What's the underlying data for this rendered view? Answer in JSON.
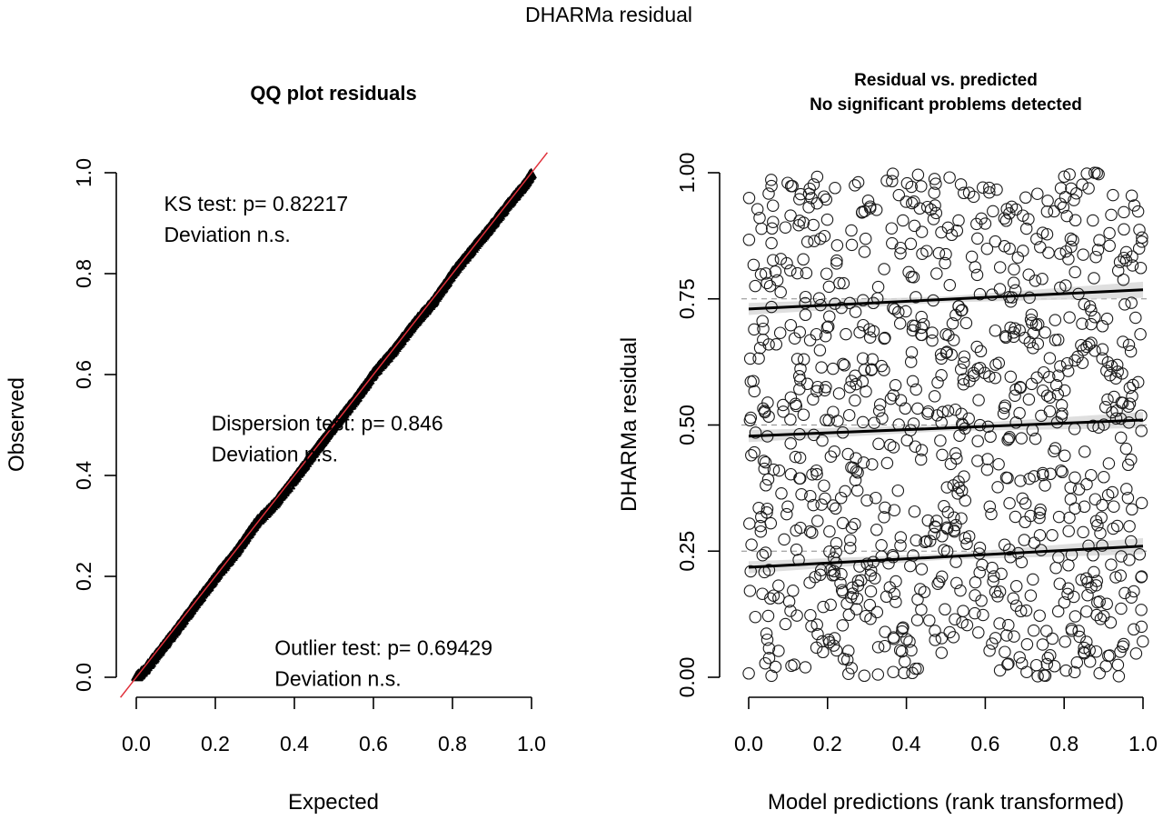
{
  "figure": {
    "title": "DHARMa residual"
  },
  "chart_data": [
    {
      "type": "scatter",
      "panel": "left",
      "title": "QQ plot residuals",
      "xlabel": "Expected",
      "ylabel": "Observed",
      "xlim": [
        0,
        1
      ],
      "ylim": [
        0,
        1
      ],
      "x_ticks": [
        "0.0",
        "0.2",
        "0.4",
        "0.6",
        "0.8",
        "1.0"
      ],
      "y_ticks": [
        "0.0",
        "0.2",
        "0.4",
        "0.6",
        "0.8",
        "1.0"
      ],
      "series": [
        {
          "values": "uniform quantiles from 0 to 1 closely following the 1:1 line",
          "x": [
            0.0,
            0.02,
            0.05,
            0.1,
            0.15,
            0.2,
            0.25,
            0.3,
            0.35,
            0.4,
            0.45,
            0.5,
            0.55,
            0.6,
            0.65,
            0.7,
            0.75,
            0.8,
            0.85,
            0.9,
            0.95,
            0.98,
            1.0
          ],
          "y": [
            0.0,
            0.015,
            0.045,
            0.095,
            0.148,
            0.2,
            0.248,
            0.305,
            0.345,
            0.395,
            0.448,
            0.5,
            0.548,
            0.603,
            0.648,
            0.7,
            0.745,
            0.802,
            0.85,
            0.898,
            0.948,
            0.975,
            1.0
          ]
        }
      ],
      "reference_line": {
        "slope": 1,
        "intercept": 0,
        "color": "#e0303a"
      },
      "annotations": [
        {
          "line1": "KS test: p= 0.82217",
          "line2": "Deviation  n.s.",
          "x": 0.07,
          "y": 0.955
        },
        {
          "line1": "Dispersion test: p= 0.846",
          "line2": "Deviation  n.s.",
          "x": 0.19,
          "y": 0.52
        },
        {
          "line1": "Outlier test: p= 0.69429",
          "line2": "Deviation  n.s.",
          "x": 0.35,
          "y": 0.075
        }
      ]
    },
    {
      "type": "scatter",
      "panel": "right",
      "title": "Residual vs. predicted",
      "subtitle": "No significant problems detected",
      "xlabel": "Model predictions (rank transformed)",
      "ylabel": "DHARMa residual",
      "xlim": [
        0,
        1
      ],
      "ylim": [
        0,
        1
      ],
      "x_ticks": [
        "0.0",
        "0.2",
        "0.4",
        "0.6",
        "0.8",
        "1.0"
      ],
      "y_ticks": [
        "0.00",
        "0.25",
        "0.50",
        "0.75",
        "1.00"
      ],
      "point_count": 1000,
      "point_style": "open circle",
      "reference_lines": [
        0.25,
        0.5,
        0.75
      ],
      "quantile_fits": [
        {
          "quantile": 0.25,
          "start": 0.218,
          "end": 0.26
        },
        {
          "quantile": 0.5,
          "start": 0.478,
          "end": 0.51
        },
        {
          "quantile": 0.75,
          "start": 0.73,
          "end": 0.768
        }
      ]
    }
  ]
}
